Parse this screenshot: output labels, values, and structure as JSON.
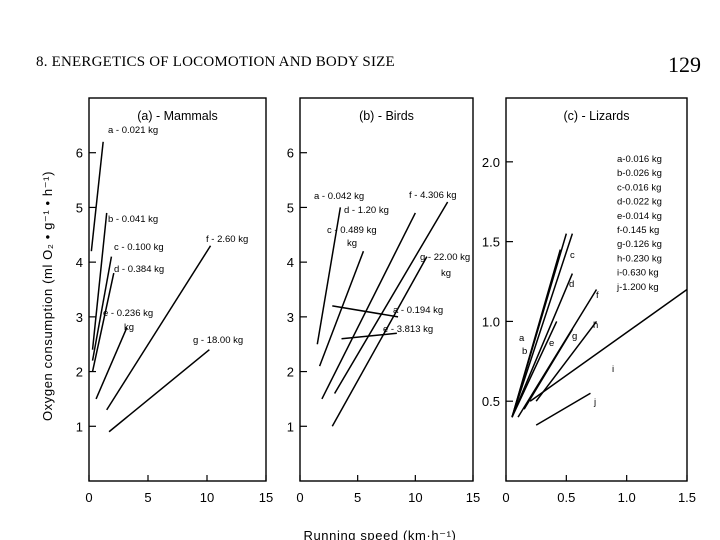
{
  "header": {
    "chapter_title": "8. ENERGETICS OF LOCOMOTION AND BODY SIZE",
    "page_number": "129"
  },
  "chart_data": [
    {
      "type": "line",
      "title": "(a) - Mammals",
      "xlabel": "Running speed (km·h⁻¹)",
      "ylabel": "Oxygen consumption (ml O₂ • g⁻¹ • h⁻¹)",
      "xlim": [
        0,
        15
      ],
      "ylim": [
        0,
        7
      ],
      "x_ticks": [
        {
          "v": 0,
          "label": "0"
        },
        {
          "v": 5,
          "label": "5"
        },
        {
          "v": 10,
          "label": "10"
        },
        {
          "v": 15,
          "label": "15"
        }
      ],
      "y_ticks": [
        {
          "v": 1,
          "label": "1"
        },
        {
          "v": 2,
          "label": "2"
        },
        {
          "v": 3,
          "label": "3"
        },
        {
          "v": 4,
          "label": "4"
        },
        {
          "v": 5,
          "label": "5"
        },
        {
          "v": 6,
          "label": "6"
        }
      ],
      "series": [
        {
          "name": "a - 0.021 kg",
          "x": [
            0.2,
            1.2
          ],
          "y": [
            4.2,
            6.2
          ]
        },
        {
          "name": "b - 0.041 kg",
          "x": [
            0.3,
            1.5
          ],
          "y": [
            2.4,
            4.9
          ]
        },
        {
          "name": "c - 0.100 kg",
          "x": [
            0.3,
            1.9
          ],
          "y": [
            2.2,
            4.1
          ]
        },
        {
          "name": "d - 0.384 kg",
          "x": [
            0.3,
            2.1
          ],
          "y": [
            2.0,
            3.8
          ]
        },
        {
          "name": "e - 0.236 kg",
          "x": [
            0.6,
            3.2
          ],
          "y": [
            1.5,
            2.8
          ]
        },
        {
          "name": "f - 2.60 kg",
          "x": [
            1.5,
            10.3
          ],
          "y": [
            1.3,
            4.3
          ]
        },
        {
          "name": "g - 18.00 kg",
          "x": [
            1.7,
            10.2
          ],
          "y": [
            0.9,
            2.4
          ]
        }
      ]
    },
    {
      "type": "line",
      "title": "(b) - Birds",
      "xlim": [
        0,
        15
      ],
      "ylim": [
        0,
        7
      ],
      "x_ticks": [
        {
          "v": 0,
          "label": "0"
        },
        {
          "v": 5,
          "label": "5"
        },
        {
          "v": 10,
          "label": "10"
        },
        {
          "v": 15,
          "label": "15"
        }
      ],
      "y_ticks": [
        {
          "v": 1,
          "label": "1"
        },
        {
          "v": 2,
          "label": "2"
        },
        {
          "v": 3,
          "label": "3"
        },
        {
          "v": 4,
          "label": "4"
        },
        {
          "v": 5,
          "label": "5"
        },
        {
          "v": 6,
          "label": "6"
        }
      ],
      "series": [
        {
          "name": "a - 0.042 kg",
          "x": [
            1.5,
            3.5
          ],
          "y": [
            2.5,
            5.0
          ]
        },
        {
          "name": "c - 0.489 kg",
          "x": [
            1.7,
            5.5
          ],
          "y": [
            2.1,
            4.2
          ]
        },
        {
          "name": "d - 1.20 kg",
          "x": [
            1.9,
            10.0
          ],
          "y": [
            1.5,
            4.9
          ]
        },
        {
          "name": "f - 4.306 kg",
          "x": [
            3.0,
            12.8
          ],
          "y": [
            1.6,
            5.1
          ]
        },
        {
          "name": "g - 22.00 kg",
          "x": [
            2.8,
            11.0
          ],
          "y": [
            1.0,
            4.1
          ]
        },
        {
          "name": "a - 0.194 kg",
          "x": [
            2.8,
            8.5
          ],
          "y": [
            3.2,
            3.0
          ]
        },
        {
          "name": "e - 3.813 kg",
          "x": [
            3.6,
            8.4
          ],
          "y": [
            2.6,
            2.7
          ]
        }
      ]
    },
    {
      "type": "line",
      "title": "(c) - Lizards",
      "xlim": [
        0,
        1.5
      ],
      "ylim": [
        0,
        2.4
      ],
      "x_ticks": [
        {
          "v": 0,
          "label": "0"
        },
        {
          "v": 0.5,
          "label": "0.5"
        },
        {
          "v": 1.0,
          "label": "1.0"
        },
        {
          "v": 1.5,
          "label": "1.5"
        }
      ],
      "y_ticks": [
        {
          "v": 0.5,
          "label": "0.5"
        },
        {
          "v": 1.0,
          "label": "1.0"
        },
        {
          "v": 1.5,
          "label": "1.5"
        },
        {
          "v": 2.0,
          "label": "2.0"
        }
      ],
      "legend": [
        "a-0.016 kg",
        "b-0.026 kg",
        "c-0.016 kg",
        "d-0.022 kg",
        "e-0.014 kg",
        "f-0.145 kg",
        "g-0.126 kg",
        "h-0.230 kg",
        "i-0.630 kg",
        "j-1.200 kg"
      ],
      "legend_position": "top-right",
      "series": [
        {
          "name": "a",
          "x": [
            0.05,
            0.45
          ],
          "y": [
            0.4,
            1.45
          ]
        },
        {
          "name": "b",
          "x": [
            0.05,
            0.5
          ],
          "y": [
            0.4,
            1.55
          ]
        },
        {
          "name": "c",
          "x": [
            0.05,
            0.55
          ],
          "y": [
            0.4,
            1.55
          ]
        },
        {
          "name": "d",
          "x": [
            0.05,
            0.55
          ],
          "y": [
            0.4,
            1.3
          ]
        },
        {
          "name": "e",
          "x": [
            0.05,
            0.42
          ],
          "y": [
            0.4,
            1.0
          ]
        },
        {
          "name": "f",
          "x": [
            0.1,
            0.75
          ],
          "y": [
            0.4,
            1.2
          ]
        },
        {
          "name": "g",
          "x": [
            0.15,
            0.55
          ],
          "y": [
            0.45,
            0.95
          ]
        },
        {
          "name": "h",
          "x": [
            0.25,
            0.75
          ],
          "y": [
            0.5,
            1.0
          ]
        },
        {
          "name": "i",
          "x": [
            0.2,
            1.5
          ],
          "y": [
            0.5,
            1.2
          ]
        },
        {
          "name": "j",
          "x": [
            0.25,
            0.7
          ],
          "y": [
            0.35,
            0.55
          ]
        }
      ]
    }
  ]
}
